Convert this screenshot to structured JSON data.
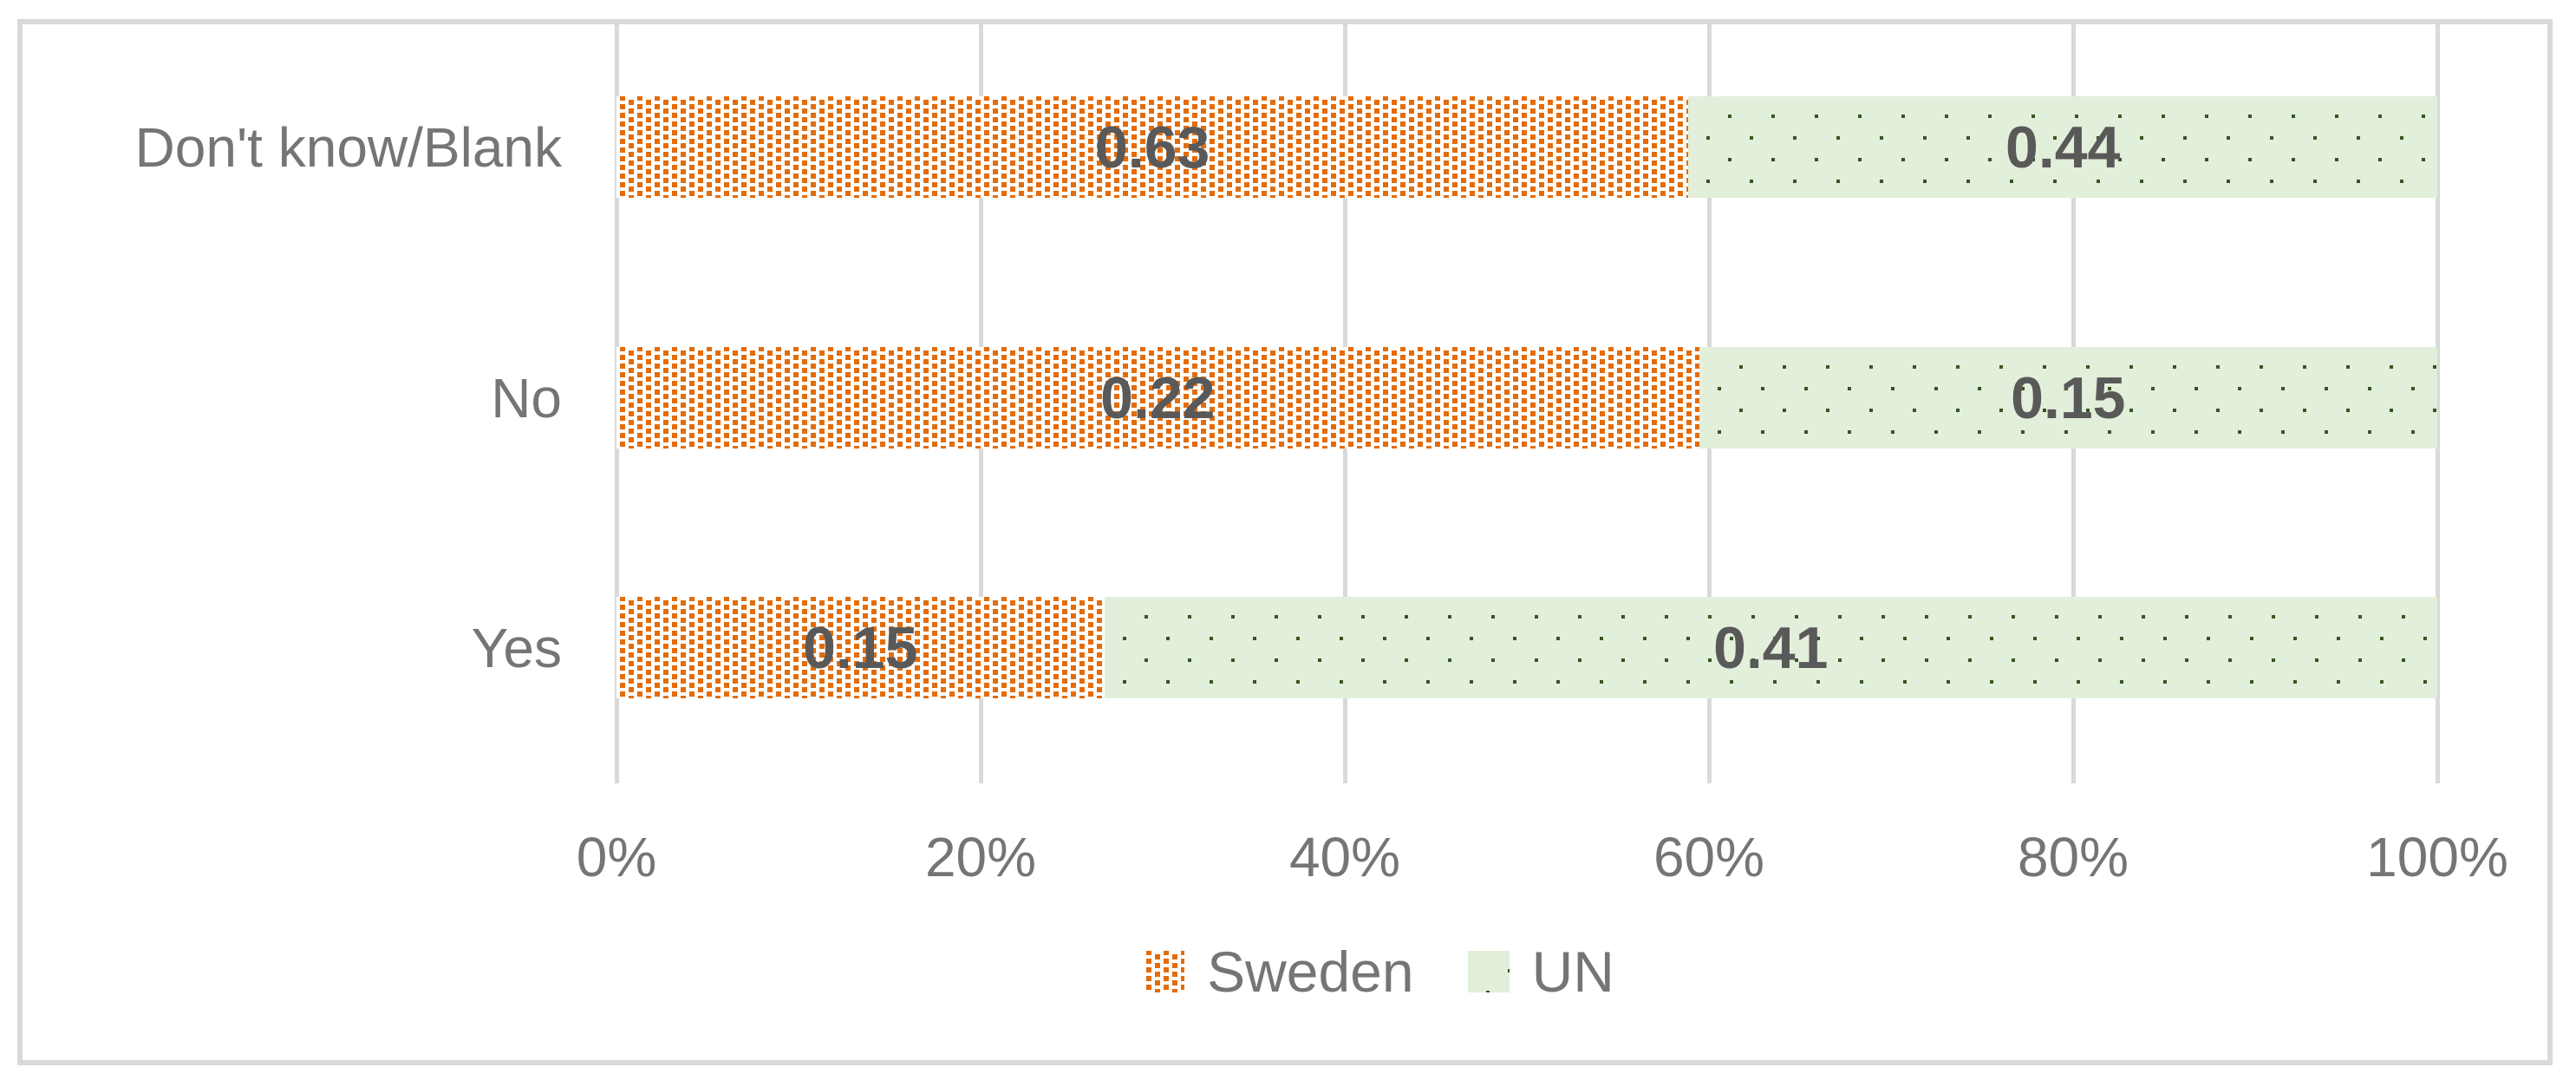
{
  "chart_data": {
    "type": "bar",
    "subtype": "100%-stacked-horizontal",
    "title": "",
    "categories": [
      "Don't know/Blank",
      "No",
      "Yes"
    ],
    "series": [
      {
        "name": "Sweden",
        "pattern": "orange-dots-on-white",
        "values": [
          0.63,
          0.22,
          0.15
        ],
        "data_labels": [
          "0.63",
          "0.22",
          "0.15"
        ]
      },
      {
        "name": "UN",
        "pattern": "dark-green-dots-on-light-green",
        "values": [
          0.44,
          0.15,
          0.41
        ],
        "data_labels": [
          "0.44",
          "0.15",
          "0.41"
        ]
      }
    ],
    "x_axis": {
      "ticks": [
        "0%",
        "20%",
        "40%",
        "60%",
        "80%",
        "100%"
      ],
      "range": [
        0,
        1
      ],
      "gridlines": true
    },
    "y_axis": {
      "label": ""
    },
    "legend": {
      "position": "bottom",
      "entries": [
        "Sweden",
        "UN"
      ]
    },
    "style": {
      "sweden_pattern_color": "#E36C0A",
      "un_background_color": "#E2EFDA",
      "un_dot_color": "#375623",
      "gridline_color": "#D9D9D9",
      "frame_border_color": "#D9D9D9",
      "axis_text_color": "#757575",
      "data_label_color": "#595959"
    }
  }
}
